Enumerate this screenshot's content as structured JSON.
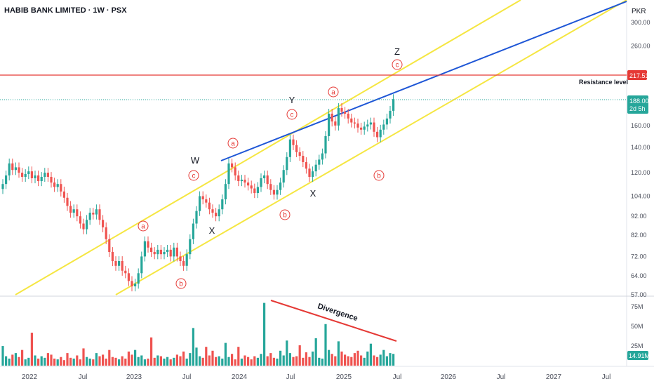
{
  "header": {
    "symbol": "HABIB BANK LIMITED",
    "sep1": "·",
    "interval": "1W",
    "sep2": "·",
    "exchange": "PSX"
  },
  "colors": {
    "up": "#26a69a",
    "down": "#ef5350",
    "channel": "#f5e642",
    "trendline": "#1e56d6",
    "resistance": "#e53935",
    "divergence": "#e53935",
    "wave_label": "#e53935"
  },
  "chart_data": {
    "type": "candlestick",
    "currency_label": "PKR",
    "y_axis": {
      "scale": "log",
      "ylim": [
        56,
        315
      ],
      "ticks": [
        "300.00",
        "260.00",
        "217.51",
        "188.00",
        "160.00",
        "140.00",
        "120.00",
        "104.00",
        "92.00",
        "82.00",
        "72.00",
        "64.00",
        "57.00"
      ]
    },
    "x_axis": {
      "ticks": [
        "2022",
        "Jul",
        "2023",
        "Jul",
        "2024",
        "Jul",
        "2025",
        "Jul",
        "2026",
        "Jul",
        "2027",
        "Jul"
      ]
    },
    "last_price": {
      "value": "188.00",
      "countdown": "2d 5h"
    },
    "resistance": {
      "value": 217.51,
      "label_text": "217.51",
      "name": "Resistance level"
    },
    "closes": [
      112,
      118,
      127,
      122,
      124,
      120,
      117,
      119,
      121,
      116,
      118,
      114,
      117,
      120,
      117,
      113,
      110,
      112,
      107,
      103,
      98,
      94,
      96,
      92,
      88,
      85,
      90,
      94,
      93,
      96,
      90,
      86,
      80,
      74,
      70,
      68,
      70,
      66,
      65,
      62,
      60,
      61,
      65,
      72,
      79,
      76,
      74,
      73,
      75,
      73,
      74,
      75,
      72,
      76,
      72,
      70,
      68,
      73,
      80,
      88,
      95,
      104,
      102,
      100,
      96,
      94,
      92,
      96,
      102,
      112,
      127,
      124,
      118,
      114,
      115,
      113,
      111,
      109,
      106,
      110,
      116,
      118,
      112,
      108,
      105,
      108,
      113,
      122,
      132,
      147,
      142,
      136,
      133,
      128,
      123,
      117,
      121,
      126,
      130,
      135,
      150,
      172,
      164,
      160,
      178,
      174,
      172,
      167,
      163,
      162,
      158,
      156,
      159,
      161,
      163,
      154,
      149,
      156,
      161,
      167,
      175,
      188
    ],
    "volume": {
      "ticks": [
        "75M",
        "50M",
        "25M"
      ],
      "last_value": "14.91M",
      "values": [
        25,
        12,
        9,
        14,
        16,
        11,
        20,
        8,
        10,
        42,
        13,
        9,
        12,
        10,
        16,
        14,
        9,
        8,
        11,
        7,
        16,
        10,
        9,
        13,
        8,
        22,
        11,
        9,
        8,
        16,
        12,
        14,
        9,
        20,
        11,
        10,
        8,
        12,
        9,
        18,
        14,
        20,
        11,
        13,
        8,
        9,
        36,
        10,
        13,
        12,
        9,
        11,
        8,
        10,
        14,
        12,
        18,
        9,
        16,
        48,
        23,
        12,
        10,
        24,
        13,
        19,
        11,
        12,
        9,
        29,
        11,
        15,
        8,
        24,
        9,
        13,
        11,
        8,
        12,
        10,
        15,
        80,
        12,
        16,
        10,
        9,
        19,
        13,
        32,
        16,
        11,
        12,
        26,
        10,
        17,
        11,
        18,
        35,
        10,
        9,
        53,
        20,
        15,
        12,
        31,
        18,
        14,
        12,
        11,
        16,
        19,
        13,
        10,
        18,
        28,
        13,
        11,
        14,
        20,
        12,
        16,
        15
      ]
    },
    "annotations": {
      "wave_labels": [
        "a",
        "b",
        "c",
        "a",
        "b",
        "c",
        "a",
        "b",
        "c"
      ],
      "big_labels": [
        "W",
        "X",
        "Y",
        "X",
        "Z"
      ],
      "divergence": "Divergence"
    }
  }
}
